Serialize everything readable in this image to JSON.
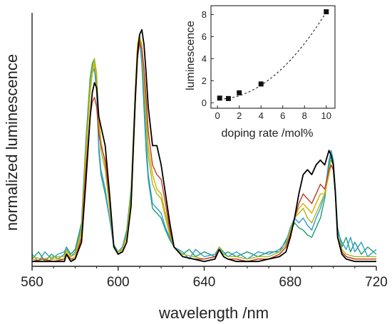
{
  "chart_data": [
    {
      "type": "line",
      "xlabel": "wavelength /nm",
      "ylabel": "normalized luminescence",
      "xlim": [
        560,
        720
      ],
      "ylim": [
        0,
        1.05
      ],
      "xticks": [
        560,
        600,
        640,
        680,
        720
      ],
      "y_tick_labels": false,
      "grid": false,
      "colors": [
        "#000000",
        "#c0392b",
        "#d4b000",
        "#a8b820",
        "#2e9bd6",
        "#1f9e6a"
      ],
      "series": [
        {
          "x": [
            560,
            565,
            570,
            575,
            576,
            578,
            580,
            583,
            585,
            587,
            588,
            589,
            590,
            591,
            592,
            594,
            596,
            598,
            600,
            602,
            604,
            606,
            608,
            609,
            610,
            611,
            612,
            613,
            614,
            616,
            618,
            620,
            622,
            624,
            626,
            630,
            635,
            640,
            645,
            647,
            649,
            651,
            655,
            660,
            665,
            670,
            675,
            678,
            680,
            682,
            684,
            686,
            688,
            690,
            692,
            694,
            696,
            698,
            699,
            700,
            701,
            702,
            704,
            706,
            710,
            715,
            720
          ],
          "values": [
            0.02,
            0.02,
            0.02,
            0.02,
            0.05,
            0.02,
            0.03,
            0.1,
            0.35,
            0.62,
            0.72,
            0.76,
            0.74,
            0.62,
            0.58,
            0.5,
            0.3,
            0.08,
            0.05,
            0.06,
            0.1,
            0.25,
            0.7,
            0.88,
            0.96,
            0.98,
            0.92,
            0.8,
            0.66,
            0.5,
            0.5,
            0.42,
            0.3,
            0.18,
            0.08,
            0.04,
            0.03,
            0.02,
            0.03,
            0.07,
            0.04,
            0.03,
            0.02,
            0.02,
            0.02,
            0.03,
            0.04,
            0.06,
            0.12,
            0.2,
            0.3,
            0.38,
            0.4,
            0.38,
            0.42,
            0.44,
            0.42,
            0.48,
            0.46,
            0.42,
            0.3,
            0.12,
            0.05,
            0.03,
            0.02,
            0.02,
            0.02
          ]
        },
        {
          "x": [
            560,
            565,
            570,
            575,
            576,
            578,
            580,
            583,
            585,
            587,
            588,
            589,
            590,
            591,
            592,
            594,
            596,
            598,
            600,
            602,
            604,
            606,
            608,
            609,
            610,
            611,
            612,
            613,
            614,
            616,
            618,
            620,
            622,
            624,
            626,
            630,
            635,
            640,
            645,
            647,
            649,
            651,
            655,
            660,
            665,
            670,
            675,
            678,
            680,
            682,
            684,
            686,
            688,
            690,
            692,
            694,
            696,
            698,
            699,
            700,
            701,
            702,
            704,
            706,
            710,
            715,
            720
          ],
          "values": [
            0.02,
            0.03,
            0.02,
            0.03,
            0.05,
            0.03,
            0.03,
            0.12,
            0.4,
            0.62,
            0.68,
            0.7,
            0.66,
            0.55,
            0.5,
            0.44,
            0.28,
            0.08,
            0.05,
            0.06,
            0.1,
            0.25,
            0.68,
            0.86,
            0.93,
            0.9,
            0.82,
            0.7,
            0.56,
            0.42,
            0.38,
            0.36,
            0.26,
            0.15,
            0.08,
            0.04,
            0.03,
            0.03,
            0.04,
            0.07,
            0.04,
            0.03,
            0.03,
            0.02,
            0.03,
            0.03,
            0.05,
            0.08,
            0.13,
            0.2,
            0.26,
            0.3,
            0.28,
            0.26,
            0.3,
            0.34,
            0.32,
            0.4,
            0.42,
            0.4,
            0.3,
            0.12,
            0.06,
            0.04,
            0.03,
            0.03,
            0.03
          ]
        },
        {
          "x": [
            560,
            565,
            570,
            575,
            576,
            578,
            580,
            583,
            585,
            587,
            588,
            589,
            590,
            591,
            592,
            594,
            596,
            598,
            600,
            602,
            604,
            606,
            608,
            609,
            610,
            611,
            612,
            613,
            614,
            616,
            618,
            620,
            622,
            624,
            626,
            630,
            635,
            640,
            645,
            647,
            649,
            651,
            655,
            660,
            665,
            670,
            675,
            678,
            680,
            682,
            684,
            686,
            688,
            690,
            692,
            694,
            696,
            698,
            699,
            700,
            701,
            702,
            704,
            706,
            710,
            715,
            720
          ],
          "values": [
            0.03,
            0.02,
            0.03,
            0.03,
            0.06,
            0.03,
            0.04,
            0.14,
            0.45,
            0.72,
            0.8,
            0.84,
            0.78,
            0.62,
            0.52,
            0.42,
            0.26,
            0.08,
            0.05,
            0.07,
            0.12,
            0.28,
            0.72,
            0.9,
            0.95,
            0.92,
            0.8,
            0.66,
            0.5,
            0.38,
            0.32,
            0.3,
            0.22,
            0.14,
            0.08,
            0.04,
            0.03,
            0.02,
            0.03,
            0.07,
            0.04,
            0.03,
            0.03,
            0.02,
            0.03,
            0.03,
            0.05,
            0.08,
            0.14,
            0.2,
            0.24,
            0.26,
            0.24,
            0.22,
            0.26,
            0.3,
            0.3,
            0.38,
            0.42,
            0.4,
            0.3,
            0.12,
            0.06,
            0.04,
            0.03,
            0.03,
            0.03
          ]
        },
        {
          "x": [
            560,
            565,
            570,
            575,
            576,
            578,
            580,
            583,
            585,
            587,
            588,
            589,
            590,
            591,
            592,
            594,
            596,
            598,
            600,
            602,
            604,
            606,
            608,
            609,
            610,
            611,
            612,
            613,
            614,
            616,
            618,
            620,
            622,
            624,
            626,
            630,
            635,
            640,
            645,
            647,
            649,
            651,
            655,
            660,
            665,
            670,
            675,
            678,
            680,
            682,
            684,
            686,
            688,
            690,
            692,
            694,
            696,
            698,
            699,
            700,
            701,
            702,
            704,
            706,
            710,
            715,
            720
          ],
          "values": [
            0.04,
            0.03,
            0.04,
            0.04,
            0.07,
            0.04,
            0.05,
            0.15,
            0.48,
            0.74,
            0.82,
            0.86,
            0.8,
            0.6,
            0.48,
            0.4,
            0.24,
            0.08,
            0.06,
            0.07,
            0.13,
            0.3,
            0.74,
            0.92,
            0.96,
            0.9,
            0.76,
            0.6,
            0.46,
            0.34,
            0.3,
            0.28,
            0.2,
            0.13,
            0.08,
            0.05,
            0.04,
            0.03,
            0.04,
            0.08,
            0.05,
            0.04,
            0.04,
            0.03,
            0.04,
            0.04,
            0.06,
            0.09,
            0.15,
            0.2,
            0.22,
            0.24,
            0.2,
            0.18,
            0.22,
            0.26,
            0.3,
            0.4,
            0.44,
            0.42,
            0.3,
            0.13,
            0.07,
            0.05,
            0.04,
            0.04,
            0.04
          ]
        },
        {
          "x": [
            560,
            563,
            566,
            569,
            572,
            575,
            576,
            578,
            580,
            583,
            585,
            587,
            588,
            589,
            590,
            591,
            592,
            594,
            596,
            598,
            600,
            602,
            604,
            606,
            608,
            609,
            610,
            611,
            612,
            613,
            614,
            616,
            618,
            620,
            622,
            624,
            626,
            630,
            633,
            636,
            640,
            645,
            647,
            649,
            651,
            655,
            660,
            665,
            670,
            675,
            678,
            680,
            682,
            684,
            686,
            688,
            690,
            692,
            694,
            696,
            698,
            699,
            700,
            701,
            702,
            704,
            706,
            708,
            710,
            713,
            716,
            720
          ],
          "values": [
            0.05,
            0.02,
            0.06,
            0.03,
            0.05,
            0.06,
            0.08,
            0.04,
            0.06,
            0.16,
            0.5,
            0.74,
            0.8,
            0.82,
            0.72,
            0.5,
            0.4,
            0.32,
            0.2,
            0.08,
            0.06,
            0.08,
            0.14,
            0.3,
            0.72,
            0.88,
            0.93,
            0.86,
            0.7,
            0.52,
            0.38,
            0.26,
            0.24,
            0.22,
            0.16,
            0.12,
            0.08,
            0.06,
            0.03,
            0.07,
            0.04,
            0.05,
            0.08,
            0.06,
            0.04,
            0.06,
            0.03,
            0.06,
            0.05,
            0.07,
            0.1,
            0.16,
            0.2,
            0.18,
            0.2,
            0.17,
            0.15,
            0.2,
            0.24,
            0.3,
            0.44,
            0.48,
            0.44,
            0.3,
            0.14,
            0.1,
            0.07,
            0.12,
            0.06,
            0.1,
            0.04,
            0.07
          ]
        },
        {
          "x": [
            560,
            563,
            566,
            569,
            572,
            575,
            576,
            578,
            580,
            583,
            585,
            587,
            588,
            589,
            590,
            591,
            592,
            594,
            596,
            598,
            600,
            602,
            604,
            606,
            608,
            609,
            610,
            611,
            612,
            613,
            614,
            616,
            618,
            620,
            622,
            624,
            626,
            630,
            633,
            636,
            640,
            645,
            647,
            649,
            651,
            655,
            660,
            665,
            670,
            675,
            678,
            680,
            682,
            684,
            686,
            688,
            690,
            692,
            694,
            696,
            698,
            699,
            700,
            701,
            702,
            704,
            706,
            708,
            710,
            713,
            716,
            720
          ],
          "values": [
            0.03,
            0.06,
            0.02,
            0.05,
            0.03,
            0.05,
            0.08,
            0.05,
            0.07,
            0.18,
            0.52,
            0.78,
            0.84,
            0.86,
            0.74,
            0.48,
            0.38,
            0.3,
            0.2,
            0.09,
            0.06,
            0.08,
            0.15,
            0.32,
            0.74,
            0.9,
            0.94,
            0.84,
            0.66,
            0.48,
            0.36,
            0.24,
            0.22,
            0.2,
            0.15,
            0.11,
            0.08,
            0.05,
            0.07,
            0.04,
            0.06,
            0.04,
            0.07,
            0.05,
            0.06,
            0.04,
            0.06,
            0.04,
            0.06,
            0.06,
            0.11,
            0.14,
            0.18,
            0.16,
            0.15,
            0.13,
            0.12,
            0.16,
            0.2,
            0.28,
            0.42,
            0.46,
            0.44,
            0.32,
            0.16,
            0.08,
            0.12,
            0.06,
            0.1,
            0.05,
            0.08,
            0.05
          ]
        }
      ]
    },
    {
      "type": "scatter",
      "xlabel": "doping rate /mol%",
      "ylabel": "luminescence",
      "xlim": [
        -0.6,
        10.8
      ],
      "ylim": [
        -0.5,
        8.8
      ],
      "xticks": [
        0,
        2,
        4,
        6,
        8,
        10
      ],
      "yticks": [
        0,
        2,
        4,
        6,
        8
      ],
      "grid": false,
      "trend_line": "dashed",
      "x": [
        0.2,
        1,
        2,
        4,
        10
      ],
      "values": [
        0.42,
        0.38,
        0.9,
        1.7,
        8.25
      ]
    }
  ]
}
